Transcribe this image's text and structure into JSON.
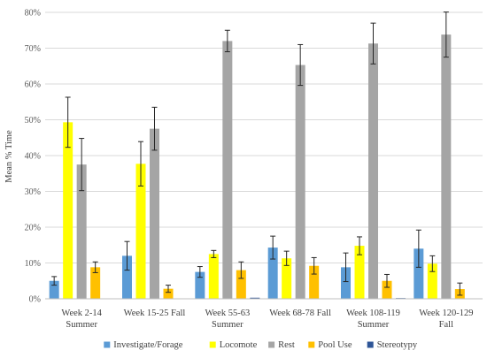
{
  "chart_data": {
    "type": "bar",
    "title": "",
    "xlabel": "",
    "ylabel": "Mean % Time",
    "ylim": [
      0,
      80
    ],
    "y_ticks": [
      "0%",
      "10%",
      "20%",
      "30%",
      "40%",
      "50%",
      "60%",
      "70%",
      "80%"
    ],
    "grid": true,
    "legend_position": "bottom",
    "categories": [
      [
        "Week 2-14",
        "Summer"
      ],
      [
        "Week 15-25 Fall"
      ],
      [
        "Week 55-63",
        "Summer"
      ],
      [
        "Week 68-78 Fall"
      ],
      [
        "Week 108-119",
        "Summer"
      ],
      [
        "Week 120-129",
        "Fall"
      ]
    ],
    "series": [
      {
        "name": "Investigate/Forage",
        "color": "#5b9bd5",
        "values": [
          5,
          12,
          7.5,
          14.3,
          8.8,
          14
        ],
        "errors": [
          1.2,
          4,
          1.5,
          3.2,
          4,
          5.2
        ]
      },
      {
        "name": "Locomote",
        "color": "#ffff00",
        "values": [
          49.3,
          37.7,
          12.5,
          11.3,
          14.8,
          9.8
        ],
        "errors": [
          7,
          6.2,
          1,
          2,
          2.5,
          2.2
        ]
      },
      {
        "name": "Rest",
        "color": "#a5a5a5",
        "values": [
          37.5,
          47.5,
          72,
          65.3,
          71.3,
          73.8
        ],
        "errors": [
          7.3,
          6,
          3,
          5.7,
          5.7,
          6.3
        ]
      },
      {
        "name": "Pool Use",
        "color": "#ffc000",
        "values": [
          8.8,
          2.8,
          8,
          9.2,
          5,
          2.7
        ],
        "errors": [
          1.5,
          1,
          2.3,
          2.3,
          1.8,
          1.7
        ]
      },
      {
        "name": "Stereotypy",
        "color": "#2e5597",
        "values": [
          0,
          0,
          0.3,
          0,
          0.2,
          0
        ],
        "errors": [
          0,
          0,
          0,
          0,
          0,
          0
        ]
      }
    ]
  }
}
